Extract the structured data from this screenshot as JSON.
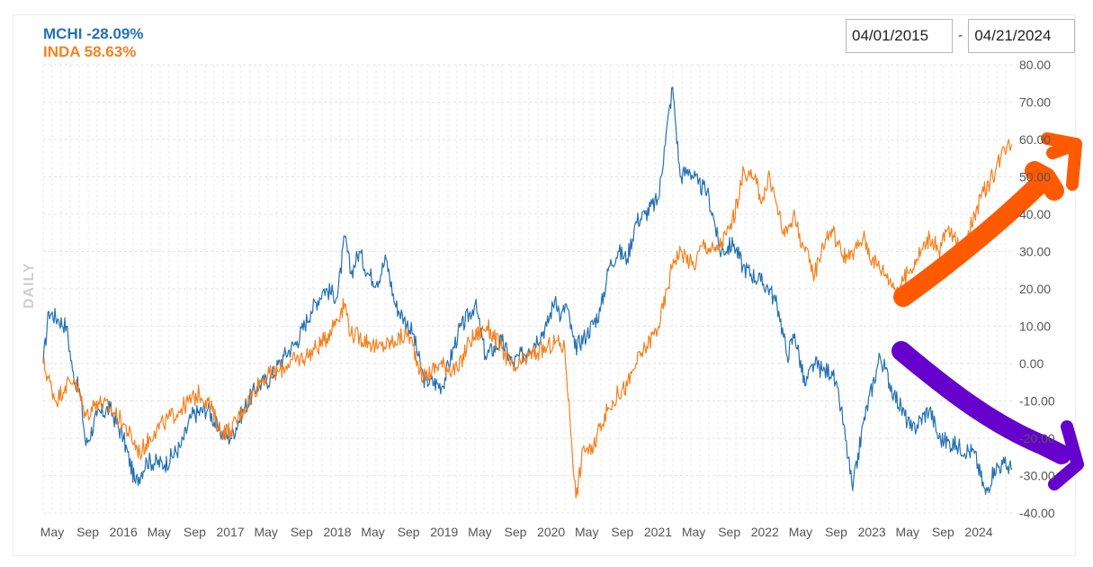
{
  "legend": {
    "series": [
      {
        "label": "MCHI -28.09%",
        "color": "#2471b3"
      },
      {
        "label": "INDA 58.63%",
        "color": "#f5811f"
      }
    ]
  },
  "date_range": {
    "start": "04/01/2015",
    "end": "04/21/2024",
    "separator": "-"
  },
  "side_label": "DAILY",
  "chart_data": {
    "type": "line",
    "ylabel": "DAILY",
    "ylim": [
      -40,
      80
    ],
    "y_ticks": [
      "80.00",
      "70.00",
      "60.00",
      "50.00",
      "40.00",
      "30.00",
      "20.00",
      "10.00",
      "0.00",
      "-10.00",
      "-20.00",
      "-30.00",
      "-40.00"
    ],
    "x_ticks": [
      "May",
      "Sep",
      "2016",
      "May",
      "Sep",
      "2017",
      "May",
      "Sep",
      "2018",
      "May",
      "Sep",
      "2019",
      "May",
      "Sep",
      "2020",
      "May",
      "Sep",
      "2021",
      "May",
      "Sep",
      "2022",
      "May",
      "Sep",
      "2023",
      "May",
      "Sep",
      "2024"
    ],
    "grid": true,
    "legend_position": "top-left",
    "series": [
      {
        "name": "MCHI",
        "color": "#2471b3",
        "points": [
          [
            "2015-04-01",
            0
          ],
          [
            "2015-04-20",
            14
          ],
          [
            "2015-05-20",
            12
          ],
          [
            "2015-06-20",
            10
          ],
          [
            "2015-07-10",
            -2
          ],
          [
            "2015-08-05",
            -8
          ],
          [
            "2015-08-25",
            -22
          ],
          [
            "2015-10-01",
            -14
          ],
          [
            "2015-11-15",
            -12
          ],
          [
            "2015-12-31",
            -20
          ],
          [
            "2016-02-10",
            -32
          ],
          [
            "2016-03-20",
            -26
          ],
          [
            "2016-05-20",
            -27
          ],
          [
            "2016-07-15",
            -22
          ],
          [
            "2016-08-20",
            -14
          ],
          [
            "2016-10-15",
            -12
          ],
          [
            "2016-11-20",
            -18
          ],
          [
            "2016-12-31",
            -20
          ],
          [
            "2017-02-15",
            -12
          ],
          [
            "2017-04-01",
            -6
          ],
          [
            "2017-05-15",
            -4
          ],
          [
            "2017-07-01",
            2
          ],
          [
            "2017-08-15",
            6
          ],
          [
            "2017-10-01",
            14
          ],
          [
            "2017-11-15",
            20
          ],
          [
            "2017-12-31",
            18
          ],
          [
            "2018-01-25",
            34
          ],
          [
            "2018-02-15",
            24
          ],
          [
            "2018-03-15",
            30
          ],
          [
            "2018-04-15",
            24
          ],
          [
            "2018-05-15",
            22
          ],
          [
            "2018-06-15",
            28
          ],
          [
            "2018-07-15",
            16
          ],
          [
            "2018-08-15",
            12
          ],
          [
            "2018-09-15",
            8
          ],
          [
            "2018-10-20",
            -4
          ],
          [
            "2018-12-24",
            -6
          ],
          [
            "2019-02-15",
            8
          ],
          [
            "2019-04-15",
            16
          ],
          [
            "2019-05-20",
            2
          ],
          [
            "2019-07-15",
            6
          ],
          [
            "2019-08-20",
            0
          ],
          [
            "2019-10-15",
            4
          ],
          [
            "2019-12-15",
            10
          ],
          [
            "2020-01-15",
            18
          ],
          [
            "2020-02-01",
            12
          ],
          [
            "2020-02-20",
            16
          ],
          [
            "2020-03-20",
            4
          ],
          [
            "2020-05-01",
            8
          ],
          [
            "2020-06-15",
            14
          ],
          [
            "2020-07-15",
            26
          ],
          [
            "2020-08-15",
            30
          ],
          [
            "2020-09-15",
            28
          ],
          [
            "2020-10-15",
            38
          ],
          [
            "2020-11-15",
            40
          ],
          [
            "2020-12-31",
            44
          ],
          [
            "2021-01-20",
            58
          ],
          [
            "2021-02-17",
            74
          ],
          [
            "2021-03-15",
            50
          ],
          [
            "2021-04-15",
            52
          ],
          [
            "2021-05-15",
            48
          ],
          [
            "2021-06-15",
            46
          ],
          [
            "2021-07-10",
            38
          ],
          [
            "2021-07-28",
            30
          ],
          [
            "2021-09-15",
            32
          ],
          [
            "2021-10-15",
            26
          ],
          [
            "2021-12-15",
            22
          ],
          [
            "2022-01-15",
            20
          ],
          [
            "2022-02-15",
            14
          ],
          [
            "2022-03-15",
            2
          ],
          [
            "2022-04-10",
            8
          ],
          [
            "2022-05-15",
            -6
          ],
          [
            "2022-06-15",
            0
          ],
          [
            "2022-07-15",
            -2
          ],
          [
            "2022-08-15",
            -2
          ],
          [
            "2022-09-15",
            -12
          ],
          [
            "2022-10-25",
            -34
          ],
          [
            "2022-11-30",
            -16
          ],
          [
            "2023-01-26",
            2
          ],
          [
            "2023-03-15",
            -8
          ],
          [
            "2023-05-15",
            -18
          ],
          [
            "2023-07-15",
            -12
          ],
          [
            "2023-08-15",
            -20
          ],
          [
            "2023-10-15",
            -22
          ],
          [
            "2023-12-15",
            -24
          ],
          [
            "2024-01-22",
            -35
          ],
          [
            "2024-02-20",
            -28
          ],
          [
            "2024-03-20",
            -27
          ],
          [
            "2024-04-21",
            -28.09
          ]
        ]
      },
      {
        "name": "INDA",
        "color": "#f5811f",
        "points": [
          [
            "2015-04-01",
            0
          ],
          [
            "2015-05-15",
            -10
          ],
          [
            "2015-06-15",
            -6
          ],
          [
            "2015-07-15",
            -4
          ],
          [
            "2015-08-25",
            -14
          ],
          [
            "2015-10-01",
            -10
          ],
          [
            "2015-11-15",
            -12
          ],
          [
            "2015-12-31",
            -16
          ],
          [
            "2016-02-25",
            -24
          ],
          [
            "2016-04-15",
            -18
          ],
          [
            "2016-05-15",
            -16
          ],
          [
            "2016-07-15",
            -12
          ],
          [
            "2016-09-15",
            -8
          ],
          [
            "2016-10-15",
            -10
          ],
          [
            "2016-11-25",
            -18
          ],
          [
            "2016-12-31",
            -18
          ],
          [
            "2017-02-15",
            -12
          ],
          [
            "2017-04-15",
            -4
          ],
          [
            "2017-06-15",
            -2
          ],
          [
            "2017-07-15",
            0
          ],
          [
            "2017-09-15",
            2
          ],
          [
            "2017-11-15",
            6
          ],
          [
            "2018-01-25",
            16
          ],
          [
            "2018-02-15",
            8
          ],
          [
            "2018-04-15",
            6
          ],
          [
            "2018-05-15",
            4
          ],
          [
            "2018-07-15",
            6
          ],
          [
            "2018-08-31",
            8
          ],
          [
            "2018-10-20",
            -4
          ],
          [
            "2018-12-15",
            0
          ],
          [
            "2019-02-15",
            -2
          ],
          [
            "2019-03-25",
            6
          ],
          [
            "2019-05-25",
            10
          ],
          [
            "2019-07-15",
            4
          ],
          [
            "2019-08-25",
            -2
          ],
          [
            "2019-10-15",
            2
          ],
          [
            "2019-12-15",
            4
          ],
          [
            "2020-01-15",
            6
          ],
          [
            "2020-02-15",
            4
          ],
          [
            "2020-03-24",
            -36
          ],
          [
            "2020-04-20",
            -22
          ],
          [
            "2020-05-20",
            -24
          ],
          [
            "2020-06-15",
            -16
          ],
          [
            "2020-07-15",
            -12
          ],
          [
            "2020-08-15",
            -8
          ],
          [
            "2020-09-15",
            -6
          ],
          [
            "2020-10-15",
            0
          ],
          [
            "2020-11-15",
            4
          ],
          [
            "2020-12-31",
            10
          ],
          [
            "2021-01-31",
            20
          ],
          [
            "2021-02-20",
            28
          ],
          [
            "2021-03-20",
            30
          ],
          [
            "2021-04-30",
            26
          ],
          [
            "2021-05-31",
            32
          ],
          [
            "2021-07-15",
            30
          ],
          [
            "2021-08-31",
            36
          ],
          [
            "2021-09-30",
            44
          ],
          [
            "2021-10-18",
            52
          ],
          [
            "2021-11-30",
            48
          ],
          [
            "2021-12-20",
            44
          ],
          [
            "2022-01-15",
            50
          ],
          [
            "2022-02-15",
            40
          ],
          [
            "2022-03-07",
            34
          ],
          [
            "2022-04-05",
            40
          ],
          [
            "2022-05-15",
            30
          ],
          [
            "2022-06-17",
            24
          ],
          [
            "2022-07-15",
            32
          ],
          [
            "2022-08-15",
            36
          ],
          [
            "2022-09-15",
            30
          ],
          [
            "2022-10-15",
            28
          ],
          [
            "2022-11-30",
            34
          ],
          [
            "2022-12-31",
            28
          ],
          [
            "2023-02-15",
            24
          ],
          [
            "2023-03-24",
            20
          ],
          [
            "2023-04-15",
            22
          ],
          [
            "2023-05-31",
            28
          ],
          [
            "2023-07-15",
            34
          ],
          [
            "2023-08-15",
            30
          ],
          [
            "2023-09-15",
            36
          ],
          [
            "2023-10-31",
            30
          ],
          [
            "2023-12-15",
            40
          ],
          [
            "2024-01-15",
            46
          ],
          [
            "2024-02-15",
            50
          ],
          [
            "2024-03-15",
            56
          ],
          [
            "2024-04-10",
            60
          ],
          [
            "2024-04-21",
            58.63
          ]
        ]
      }
    ],
    "annotations": [
      {
        "type": "arrow",
        "color": "#ff5a00",
        "direction": "up"
      },
      {
        "type": "arrow",
        "color": "#6600cc",
        "direction": "down"
      }
    ]
  }
}
